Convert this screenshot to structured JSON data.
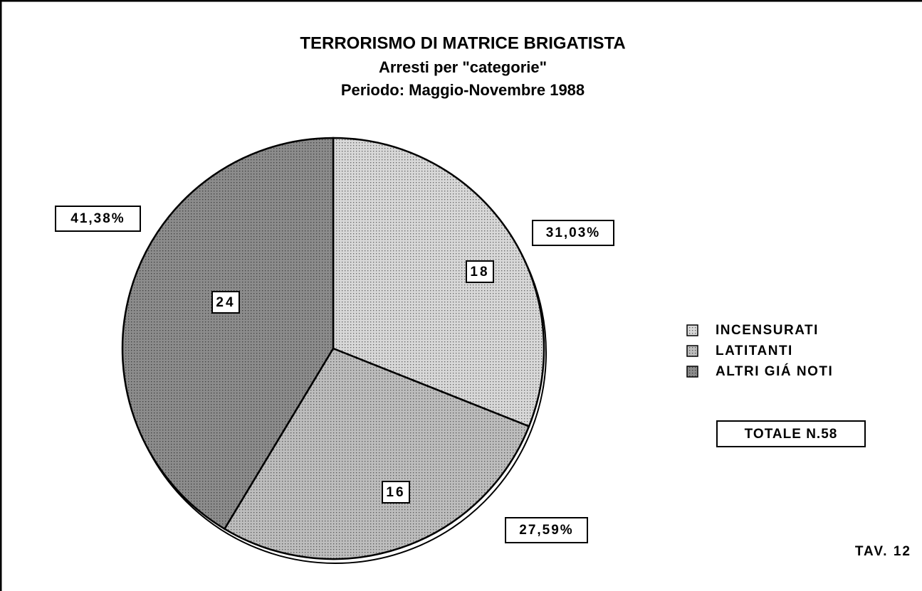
{
  "chart_data": {
    "type": "pie",
    "title": "TERRORISMO DI MATRICE BRIGATISTA",
    "subtitle": [
      "Arresti per \"categorie\"",
      "Periodo: Maggio-Novembre 1988"
    ],
    "categories": [
      "INCENSURATI",
      "LATITANTI",
      "ALTRI GIÁ NOTI"
    ],
    "values": [
      31.03,
      27.59,
      41.38
    ],
    "value_labels": [
      "31,03%",
      "27,59%",
      "41,38%"
    ],
    "counts": [
      18,
      16,
      24
    ],
    "colors": [
      "#d8d8d8",
      "#bdbdbd",
      "#8c8c8c"
    ],
    "total_label": "TOTALE N.58",
    "annotation": "TAV. 12"
  }
}
